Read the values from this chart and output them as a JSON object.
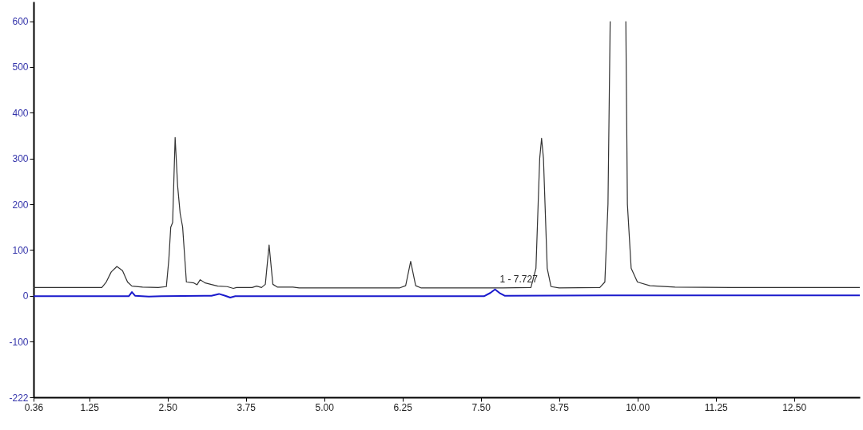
{
  "chart_data": {
    "type": "line",
    "xlim": [
      0.36,
      13.55
    ],
    "ylim": [
      -222,
      643
    ],
    "xticks": [
      0.36,
      1.25,
      {
        "value": 2.5,
        "label": "2.50"
      },
      3.75,
      {
        "value": 5,
        "label": "5.00"
      },
      6.25,
      {
        "value": 7.5,
        "label": "7.50"
      },
      8.75,
      {
        "value": 10,
        "label": "10.00"
      },
      11.25,
      {
        "value": 12.5,
        "label": "12.50"
      }
    ],
    "yticks": [
      -222,
      -100,
      0,
      100,
      200,
      300,
      400,
      500,
      600
    ],
    "grid": false,
    "marker": "none",
    "line_style": "solid",
    "series": [
      {
        "color": "#333333",
        "x": [
          0.36,
          1.45,
          1.52,
          1.6,
          1.69,
          1.78,
          1.86,
          1.93,
          2.1,
          2.35,
          2.48,
          2.52,
          2.55,
          2.58,
          2.62,
          2.66,
          2.7,
          2.74,
          2.8,
          2.92,
          2.97,
          3.02,
          3.1,
          3.3,
          3.45,
          3.55,
          3.6,
          3.85,
          3.92,
          4.0,
          4.06,
          4.12,
          4.18,
          4.25,
          4.5,
          4.6,
          6.2,
          6.3,
          6.38,
          6.46,
          6.55,
          7.7,
          7.85,
          8.3,
          8.38,
          8.44,
          8.47,
          8.5,
          8.56,
          8.62,
          8.75,
          9.4,
          9.48,
          9.53,
          9.565,
          9.68,
          9.815,
          9.84,
          9.9,
          10.0,
          10.2,
          10.6,
          11.5,
          13.55
        ],
        "values": [
          18,
          18,
          30,
          52,
          64,
          55,
          30,
          21,
          19,
          18,
          20,
          80,
          150,
          160,
          346,
          240,
          180,
          150,
          30,
          28,
          24,
          35,
          28,
          21,
          20,
          16,
          18,
          18,
          21,
          18,
          25,
          111,
          25,
          19,
          19,
          17,
          17,
          22,
          75,
          22,
          17,
          17,
          17,
          18,
          60,
          300,
          344,
          300,
          60,
          20,
          17,
          18,
          30,
          200,
          600,
          null,
          600,
          200,
          60,
          30,
          22,
          19,
          18,
          18
        ]
      },
      {
        "color": "#1a1acc",
        "x": [
          0.36,
          1.88,
          1.93,
          1.98,
          2.2,
          2.4,
          3.2,
          3.32,
          3.42,
          3.5,
          3.58,
          7.55,
          7.65,
          7.727,
          7.8,
          7.88,
          9.5,
          13.55
        ],
        "values": [
          -1,
          -1,
          8,
          0,
          -2,
          -1,
          0,
          4,
          0,
          -4,
          -1,
          -1,
          6,
          14,
          6,
          0,
          1,
          1
        ]
      }
    ],
    "annotations": [
      {
        "text": "1 - 7.727",
        "x": 7.727,
        "y": 14
      }
    ]
  }
}
